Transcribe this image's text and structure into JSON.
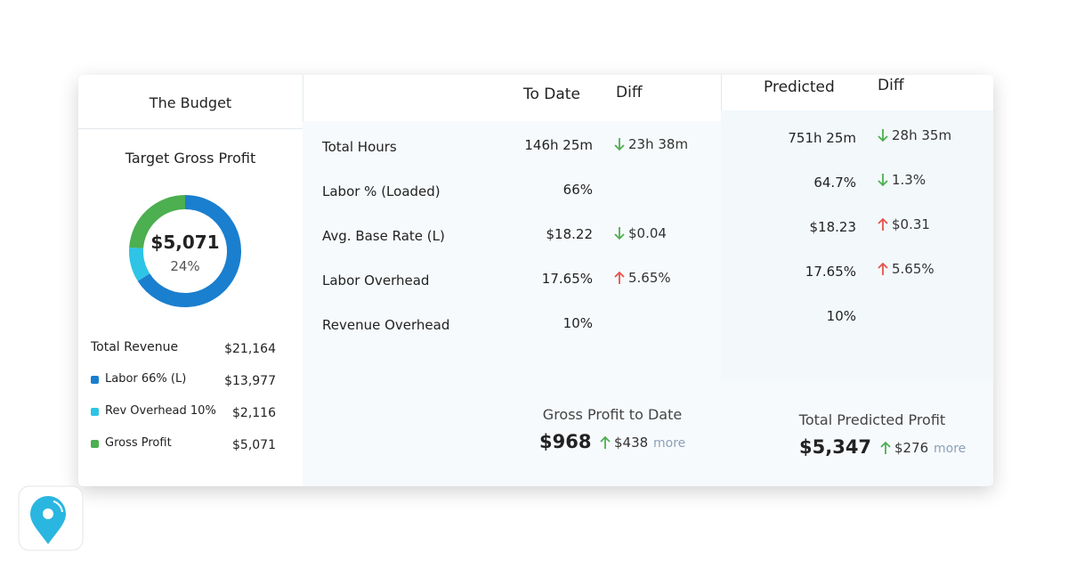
{
  "budget": {
    "title": "The Budget",
    "subtitle": "Target Gross Profit",
    "center_value": "$5,071",
    "center_percent": "24%",
    "total_label": "Total Revenue",
    "total_value": "$21,164",
    "chart_data": {
      "type": "donut",
      "categories": [
        "Labor 66% (L)",
        "Rev Overhead 10%",
        "Gross Profit"
      ],
      "values": [
        13977,
        2116,
        5071
      ],
      "value_labels": [
        "$13,977",
        "$2,116",
        "$5,071"
      ],
      "colors": [
        "#1a7fcf",
        "#2ec4e6",
        "#4caf50"
      ]
    }
  },
  "table": {
    "headers": [
      "To Date",
      "Diff",
      "Predicted",
      "Diff"
    ],
    "rows": [
      [
        "Total Hours",
        "146h 25m",
        {
          "dir": "down",
          "color": "#4caf50",
          "text": "23h 38m"
        },
        "751h 25m",
        {
          "dir": "down",
          "color": "#4caf50",
          "text": "28h 35m"
        }
      ],
      [
        "Labor % (Loaded)",
        "66%",
        null,
        "64.7%",
        {
          "dir": "down",
          "color": "#4caf50",
          "text": "1.3%"
        }
      ],
      [
        "Avg. Base Rate (L)",
        "$18.22",
        {
          "dir": "down",
          "color": "#4caf50",
          "text": "$0.04"
        },
        "$18.23",
        {
          "dir": "up",
          "color": "#e5534b",
          "text": "$0.31"
        }
      ],
      [
        "Labor Overhead",
        "17.65%",
        {
          "dir": "up",
          "color": "#e5534b",
          "text": "5.65%"
        },
        "17.65%",
        {
          "dir": "up",
          "color": "#e5534b",
          "text": "5.65%"
        }
      ],
      [
        "Revenue Overhead",
        "10%",
        null,
        "10%",
        null
      ]
    ]
  },
  "footer": [
    {
      "label": "Gross Profit to Date",
      "value": "$968",
      "diff": {
        "dir": "up",
        "color": "#4caf50",
        "text": "$438"
      },
      "link": "more"
    },
    {
      "label": "Total Predicted Profit",
      "value": "$5,347",
      "diff": {
        "dir": "up",
        "color": "#4caf50",
        "text": "$276"
      },
      "link": "more"
    }
  ]
}
